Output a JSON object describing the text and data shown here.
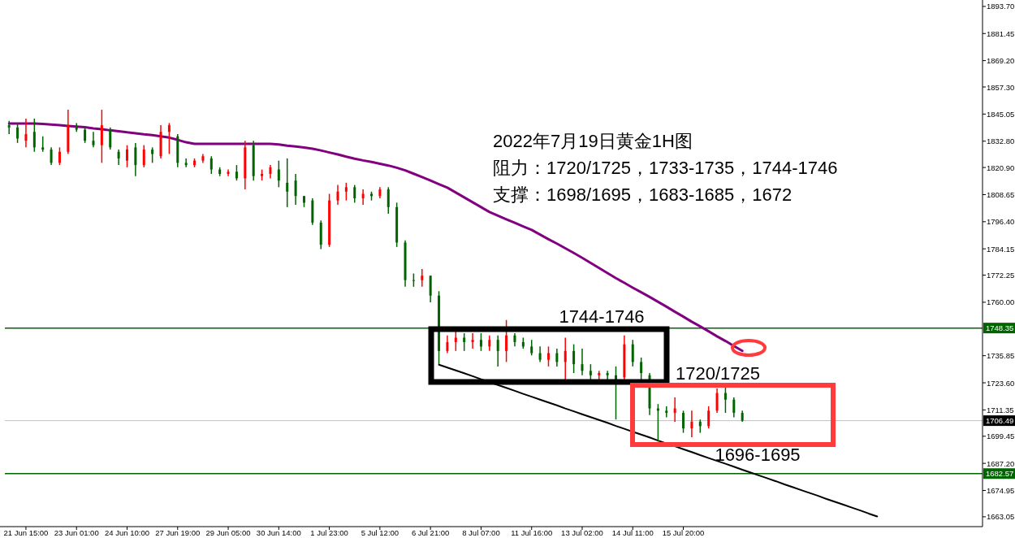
{
  "chart_data": {
    "type": "candlestick",
    "title": "2022年7月19日黄金1H图",
    "subtitle": "阻力：1720/1725，1733-1735，1744-1746",
    "annotations": [
      "支撑：1698/1695，1683-1685，1672",
      "1744-1746",
      "1720/1725",
      "1696-1695"
    ],
    "categories": [
      null,
      null,
      "21 Jun 15:00",
      null,
      null,
      null,
      null,
      null,
      "23 Jun 01:00",
      null,
      null,
      null,
      null,
      null,
      "24 Jun 10:00",
      null,
      null,
      null,
      null,
      null,
      "27 Jun 19:00",
      null,
      null,
      null,
      null,
      null,
      "29 Jun 05:00",
      null,
      null,
      null,
      null,
      null,
      "30 Jun 14:00",
      null,
      null,
      null,
      null,
      null,
      "1 Jul 23:00",
      null,
      null,
      null,
      null,
      null,
      "5 Jul 12:00",
      null,
      null,
      null,
      null,
      null,
      "6 Jul 21:00",
      null,
      null,
      null,
      null,
      null,
      "8 Jul 07:00",
      null,
      null,
      null,
      null,
      null,
      "11 Jul 16:00",
      null,
      null,
      null,
      null,
      null,
      "13 Jul 02:00",
      null,
      null,
      null,
      null,
      null,
      "14 Jul 11:00",
      null,
      null,
      null,
      null,
      null,
      "15 Jul 20:00",
      null,
      null,
      null,
      null,
      null,
      null,
      null,
      null,
      null,
      null,
      null,
      null,
      null,
      null,
      null,
      null,
      null,
      null,
      null,
      null,
      null,
      null,
      null,
      null,
      null,
      null,
      null,
      null,
      null,
      null,
      null,
      null,
      null,
      null,
      null
    ],
    "ohlc": [
      [
        1840,
        1842,
        1836,
        1839
      ],
      [
        1839,
        1841,
        1832,
        1834
      ],
      [
        1833,
        1843,
        1830,
        1836
      ],
      [
        1837,
        1843,
        1828,
        1830
      ],
      [
        1830,
        1835,
        1828,
        1829
      ],
      [
        1829,
        1830,
        1822,
        1823
      ],
      [
        1823,
        1830,
        1822,
        1828
      ],
      [
        1828,
        1847,
        1827,
        1840
      ],
      [
        1839,
        1841,
        1837,
        1838
      ],
      [
        1838,
        1839,
        1832,
        1833
      ],
      [
        1833,
        1837,
        1830,
        1831
      ],
      [
        1831,
        1847,
        1823,
        1840
      ],
      [
        1838,
        1839,
        1829,
        1830
      ],
      [
        1828,
        1829,
        1822,
        1825
      ],
      [
        1824,
        1831,
        1821,
        1829
      ],
      [
        1830,
        1832,
        1817,
        1822
      ],
      [
        1822,
        1831,
        1821,
        1829
      ],
      [
        1829,
        1830,
        1823,
        1827
      ],
      [
        1826,
        1840,
        1825,
        1837
      ],
      [
        1837,
        1841,
        1827,
        1840
      ],
      [
        1835,
        1836,
        1821,
        1823
      ],
      [
        1823,
        1825,
        1821,
        1822
      ],
      [
        1822,
        1825,
        1821,
        1824
      ],
      [
        1824,
        1827,
        1823,
        1826
      ],
      [
        1825,
        1826,
        1818,
        1820
      ],
      [
        1820,
        1821,
        1817,
        1818
      ],
      [
        1818,
        1820,
        1817,
        1819
      ],
      [
        1819,
        1822,
        1815,
        1816
      ],
      [
        1816,
        1833,
        1811,
        1830
      ],
      [
        1831,
        1833,
        1815,
        1817
      ],
      [
        1817,
        1820,
        1815,
        1818
      ],
      [
        1818,
        1822,
        1816,
        1821
      ],
      [
        1820,
        1824,
        1812,
        1815
      ],
      [
        1814,
        1825,
        1803,
        1810
      ],
      [
        1815,
        1818,
        1804,
        1808
      ],
      [
        1808,
        1808,
        1803,
        1805
      ],
      [
        1806,
        1807,
        1795,
        1796
      ],
      [
        1796,
        1797,
        1784,
        1786
      ],
      [
        1786,
        1809,
        1785,
        1806
      ],
      [
        1806,
        1813,
        1804,
        1810
      ],
      [
        1810,
        1814,
        1806,
        1812
      ],
      [
        1812,
        1813,
        1805,
        1807
      ],
      [
        1807,
        1811,
        1804,
        1809
      ],
      [
        1809,
        1810,
        1806,
        1808
      ],
      [
        1808,
        1812,
        1807,
        1811
      ],
      [
        1811,
        1812,
        1800,
        1803
      ],
      [
        1803,
        1805,
        1785,
        1787
      ],
      [
        1787,
        1788,
        1767,
        1770
      ],
      [
        1770,
        1773,
        1767,
        1770
      ],
      [
        1770,
        1775,
        1767,
        1772
      ],
      [
        1772,
        1772,
        1760,
        1763
      ],
      [
        1763,
        1765,
        1732,
        1738
      ],
      [
        1738,
        1745,
        1737,
        1742
      ],
      [
        1742,
        1747,
        1738,
        1744
      ],
      [
        1744,
        1746,
        1738,
        1742
      ],
      [
        1742,
        1746,
        1739,
        1743
      ],
      [
        1743,
        1746,
        1738,
        1740
      ],
      [
        1740,
        1745,
        1738,
        1743
      ],
      [
        1743,
        1745,
        1731,
        1738
      ],
      [
        1738,
        1752,
        1733,
        1745
      ],
      [
        1745,
        1746,
        1740,
        1742
      ],
      [
        1742,
        1744,
        1739,
        1740
      ],
      [
        1740,
        1743,
        1736,
        1737
      ],
      [
        1737,
        1740,
        1733,
        1734
      ],
      [
        1734,
        1740,
        1731,
        1737
      ],
      [
        1737,
        1739,
        1731,
        1733
      ],
      [
        1733,
        1744,
        1725,
        1738
      ],
      [
        1738,
        1741,
        1728,
        1732
      ],
      [
        1732,
        1739,
        1727,
        1729
      ],
      [
        1729,
        1732,
        1725,
        1727
      ],
      [
        1727,
        1729,
        1725,
        1728
      ],
      [
        1728,
        1729,
        1725,
        1727
      ],
      [
        1727,
        1731,
        1707,
        1724
      ],
      [
        1726,
        1745,
        1725,
        1741
      ],
      [
        1741,
        1743,
        1731,
        1733
      ],
      [
        1733,
        1735,
        1725,
        1728
      ],
      [
        1727,
        1728,
        1709,
        1712
      ],
      [
        1712,
        1714,
        1697,
        1711
      ],
      [
        1711,
        1713,
        1708,
        1710
      ],
      [
        1710,
        1717,
        1706,
        1712
      ],
      [
        1710,
        1711,
        1701,
        1703
      ],
      [
        1703,
        1711,
        1699,
        1706
      ],
      [
        1706,
        1707,
        1701,
        1704
      ],
      [
        1704,
        1713,
        1703,
        1711
      ],
      [
        1711,
        1721,
        1710,
        1719
      ],
      [
        1719,
        1722,
        1710,
        1716
      ],
      [
        1716,
        1717,
        1708,
        1710
      ],
      [
        1710,
        1711,
        1706,
        1706.5
      ],
      null,
      null,
      null,
      null,
      null,
      null,
      null,
      null,
      null,
      null,
      null,
      null,
      null,
      null,
      null,
      null,
      null,
      null,
      null,
      null,
      null,
      null,
      null,
      null,
      null,
      null,
      null,
      null
    ],
    "series": [
      {
        "type": "line",
        "color": "#800080",
        "values": [
          1840.8,
          1840.8,
          1840.8,
          1840.8,
          1840.6,
          1840.3,
          1840.0,
          1839.7,
          1839.4,
          1839.1,
          1838.6,
          1838.2,
          1837.7,
          1837.3,
          1836.8,
          1836.4,
          1835.9,
          1835.5,
          1835.0,
          1834.4,
          1833.4,
          1832.3,
          1831.6,
          1831.6,
          1831.6,
          1831.6,
          1831.6,
          1831.6,
          1831.6,
          1831.6,
          1831.6,
          1831.6,
          1831.3,
          1830.8,
          1830.4,
          1829.9,
          1829.4,
          1828.6,
          1827.7,
          1826.8,
          1825.8,
          1824.9,
          1824.1,
          1823.4,
          1822.6,
          1821.8,
          1820.8,
          1819.6,
          1818.1,
          1816.6,
          1815.0,
          1813.4,
          1811.8,
          1809.6,
          1807.4,
          1805.2,
          1803.0,
          1800.8,
          1799.1,
          1797.5,
          1795.9,
          1794.3,
          1792.7,
          1790.6,
          1788.5,
          1786.5,
          1784.4,
          1782.3,
          1780.1,
          1777.8,
          1775.5,
          1773.2,
          1770.9,
          1768.8,
          1766.6,
          1764.5,
          1762.4,
          1760.2,
          1758.0,
          1755.7,
          1753.5,
          1751.2,
          1749.1,
          1746.9,
          1744.6,
          1742.5,
          1740.2,
          1738.0,
          null,
          null,
          null,
          null,
          null,
          null,
          null,
          null,
          null,
          null,
          null,
          null,
          null,
          null,
          null,
          null,
          null,
          null,
          null,
          null,
          null,
          null,
          null,
          null,
          null,
          null,
          null,
          null
        ]
      },
      {
        "type": "line",
        "color": "#000000",
        "values": [
          null,
          null,
          null,
          null,
          null,
          null,
          null,
          null,
          null,
          null,
          null,
          null,
          null,
          null,
          null,
          null,
          null,
          null,
          null,
          null,
          null,
          null,
          null,
          null,
          null,
          null,
          null,
          null,
          null,
          null,
          null,
          null,
          null,
          null,
          null,
          null,
          null,
          null,
          null,
          null,
          null,
          null,
          null,
          null,
          null,
          null,
          null,
          null,
          null,
          null,
          null,
          1731.8,
          1730.5,
          1729.2,
          1727.9,
          1726.6,
          1725.2,
          1723.9,
          1722.6,
          1721.3,
          1720.0,
          1718.6,
          1717.3,
          1716.0,
          1714.7,
          1713.4,
          1712.0,
          1710.7,
          1709.4,
          1708.1,
          1706.8,
          1705.5,
          1704.1,
          1702.8,
          1701.5,
          1700.2,
          1698.9,
          1697.5,
          1696.2,
          1694.9,
          1693.6,
          1692.3,
          1690.9,
          1689.6,
          1688.3,
          1687.0,
          1685.7,
          1684.3,
          1683.0,
          1681.7,
          1680.4,
          1679.1,
          1677.7,
          1676.4,
          1675.1,
          1673.8,
          1672.5,
          1671.1,
          1669.8,
          1668.5,
          1667.2,
          1665.9,
          1664.5,
          1663.2,
          null,
          null,
          null,
          null,
          null,
          null,
          null,
          null,
          null,
          null,
          null,
          null
        ]
      }
    ],
    "ref_lines": [
      {
        "axis": "y",
        "value": 1748.35,
        "label": "1748.35",
        "color": "#006400"
      },
      {
        "axis": "y",
        "value": 1706.49,
        "label": "1706.49",
        "color": "#c0c0c0"
      },
      {
        "axis": "y",
        "value": 1682.57,
        "label": "1682.57",
        "color": "#006400"
      }
    ],
    "ylim": [
      1658.6,
      1896.6
    ],
    "yticks": [
      {
        "value": 1893.7,
        "label": "1893.70"
      },
      {
        "value": 1881.45,
        "label": "1881.45"
      },
      {
        "value": 1869.2,
        "label": "1869.20"
      },
      {
        "value": 1857.3,
        "label": "1857.30"
      },
      {
        "value": 1845.05,
        "label": "1845.05"
      },
      {
        "value": 1832.8,
        "label": "1832.80"
      },
      {
        "value": 1820.9,
        "label": "1820.90"
      },
      {
        "value": 1808.65,
        "label": "1808.65"
      },
      {
        "value": 1796.4,
        "label": "1796.40"
      },
      {
        "value": 1784.15,
        "label": "1784.15"
      },
      {
        "value": 1772.25,
        "label": "1772.25"
      },
      {
        "value": 1760,
        "label": "1760.00"
      },
      {
        "value": 1735.85,
        "label": "1735.85"
      },
      {
        "value": 1723.6,
        "label": "1723.60"
      },
      {
        "value": 1711.35,
        "label": "1711.35"
      },
      {
        "value": 1699.45,
        "label": "1699.45"
      },
      {
        "value": 1687.2,
        "label": "1687.20"
      },
      {
        "value": 1674.95,
        "label": "1674.95"
      },
      {
        "value": 1663.05,
        "label": "1663.05"
      }
    ]
  }
}
